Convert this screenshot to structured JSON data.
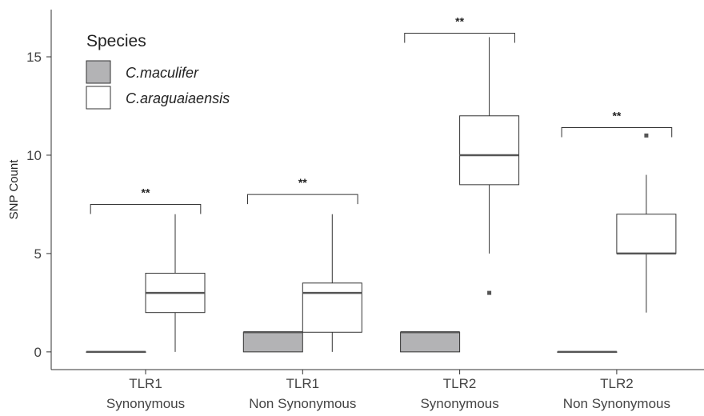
{
  "chart_data": {
    "type": "boxplot",
    "ylabel": "SNP Count",
    "ylim": [
      -0.9,
      17.4
    ],
    "yticks": [
      0,
      5,
      10,
      15
    ],
    "grid": false,
    "legend": {
      "title": "Species",
      "placement": "top-left",
      "entries": [
        {
          "name": "C.maculifer",
          "color": "#b3b3b5"
        },
        {
          "name": "C.araguaiaensis",
          "color": "#ffffff"
        }
      ]
    },
    "categories": [
      {
        "line1": "TLR1",
        "line2": "Synonymous"
      },
      {
        "line1": "TLR1",
        "line2": "Non Synonymous"
      },
      {
        "line1": "TLR2",
        "line2": "Synonymous"
      },
      {
        "line1": "TLR2",
        "line2": "Non Synonymous"
      }
    ],
    "series": [
      {
        "name": "C.maculifer",
        "boxes": [
          {
            "min": 0,
            "q1": 0,
            "median": 0,
            "q3": 0,
            "max": 0,
            "outliers": []
          },
          {
            "min": 0,
            "q1": 0,
            "median": 1,
            "q3": 1,
            "max": 1,
            "outliers": []
          },
          {
            "min": 0,
            "q1": 0,
            "median": 1,
            "q3": 1,
            "max": 1,
            "outliers": []
          },
          {
            "min": 0,
            "q1": 0,
            "median": 0,
            "q3": 0,
            "max": 0,
            "outliers": []
          }
        ]
      },
      {
        "name": "C.araguaiaensis",
        "boxes": [
          {
            "min": 0,
            "q1": 2,
            "median": 3,
            "q3": 4,
            "max": 7,
            "outliers": []
          },
          {
            "min": 0,
            "q1": 1,
            "median": 3,
            "q3": 3.5,
            "max": 7,
            "outliers": []
          },
          {
            "min": 5,
            "q1": 8.5,
            "median": 10,
            "q3": 12,
            "max": 16,
            "outliers": [
              3
            ]
          },
          {
            "min": 2,
            "q1": 5,
            "median": 5,
            "q3": 7,
            "max": 9,
            "outliers": [
              11
            ]
          }
        ]
      }
    ],
    "significance": [
      {
        "category": 0,
        "y": 7.5,
        "label": "**"
      },
      {
        "category": 1,
        "y": 8.0,
        "label": "**"
      },
      {
        "category": 2,
        "y": 16.2,
        "label": "**"
      },
      {
        "category": 3,
        "y": 11.4,
        "label": "**"
      }
    ]
  }
}
